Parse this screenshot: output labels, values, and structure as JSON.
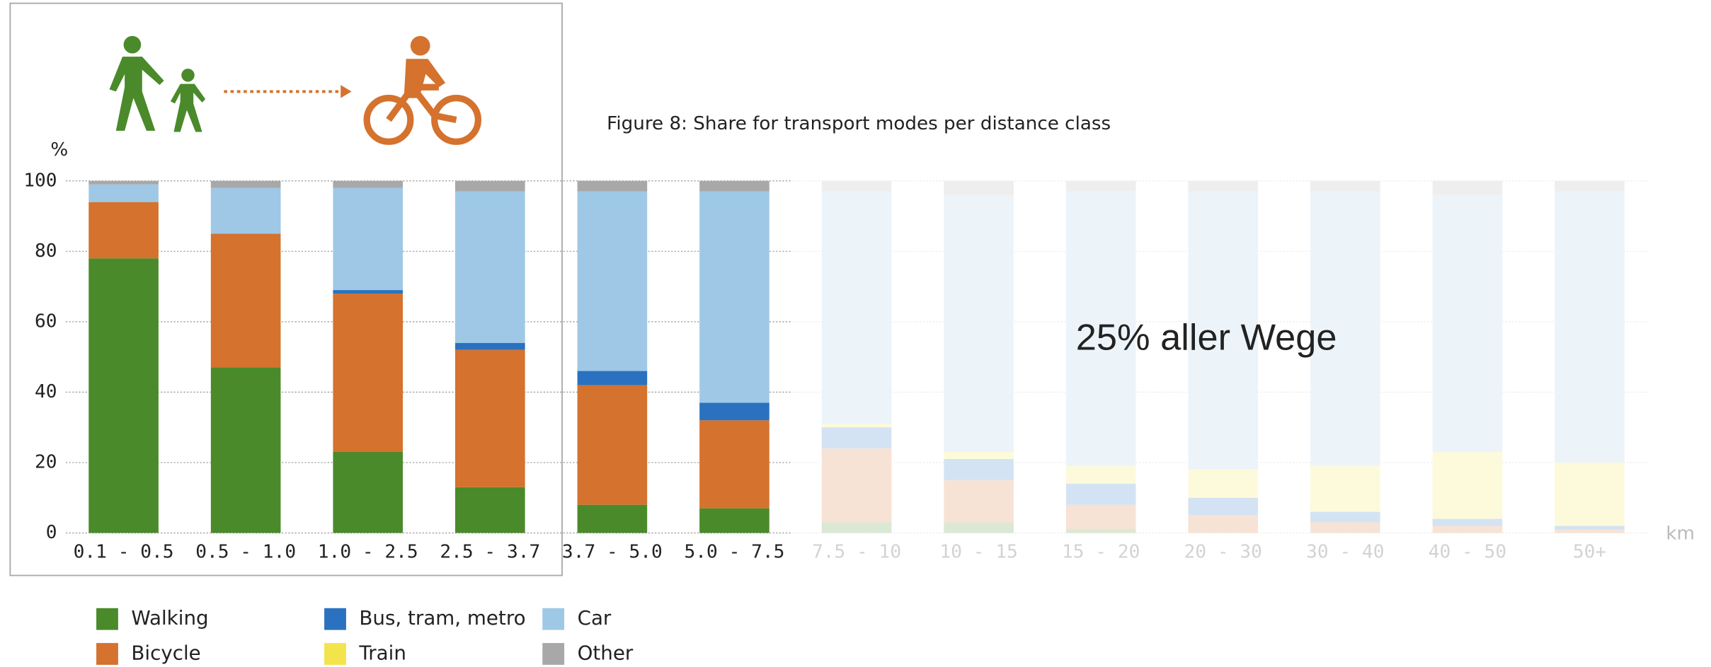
{
  "chart_data": {
    "type": "stacked_bar",
    "title": "Figure 8: Share for transport modes per distance class",
    "y_label": "%",
    "x_label": "km",
    "annotation": "25% aller Wege",
    "categories": [
      "0.1 - 0.5",
      "0.5 - 1.0",
      "1.0 - 2.5",
      "2.5 - 3.7",
      "3.7 - 5.0",
      "5.0 - 7.5",
      "7.5 - 10",
      "10 - 15",
      "15 - 20",
      "20 - 30",
      "30 - 40",
      "40 - 50",
      "50+"
    ],
    "series": [
      {
        "name": "Walking",
        "color": "#4a8a2a",
        "values": [
          78,
          47,
          23,
          13,
          8,
          7,
          3,
          3,
          1,
          0,
          0,
          0,
          0
        ]
      },
      {
        "name": "Bicycle",
        "color": "#d4722e",
        "values": [
          16,
          38,
          45,
          39,
          34,
          25,
          21,
          12,
          7,
          5,
          3,
          2,
          1
        ]
      },
      {
        "name": "Bus, tram, metro",
        "color": "#2a72c0",
        "values": [
          0,
          0,
          1,
          2,
          4,
          5,
          6,
          6,
          6,
          5,
          3,
          2,
          1
        ]
      },
      {
        "name": "Train",
        "color": "#f2e44a",
        "values": [
          0,
          0,
          0,
          0,
          0,
          0,
          1,
          2,
          5,
          8,
          13,
          19,
          18
        ]
      },
      {
        "name": "Car",
        "color": "#9ec8e6",
        "values": [
          5,
          13,
          29,
          43,
          51,
          60,
          66,
          73,
          78,
          79,
          78,
          73,
          77
        ]
      },
      {
        "name": "Other",
        "color": "#a8a8a8",
        "values": [
          1,
          2,
          2,
          3,
          3,
          3,
          3,
          4,
          3,
          3,
          3,
          4,
          3
        ]
      }
    ],
    "ylim": [
      0,
      100
    ],
    "yticks": [
      0,
      20,
      40,
      60,
      80,
      100
    ],
    "grid": true
  }
}
